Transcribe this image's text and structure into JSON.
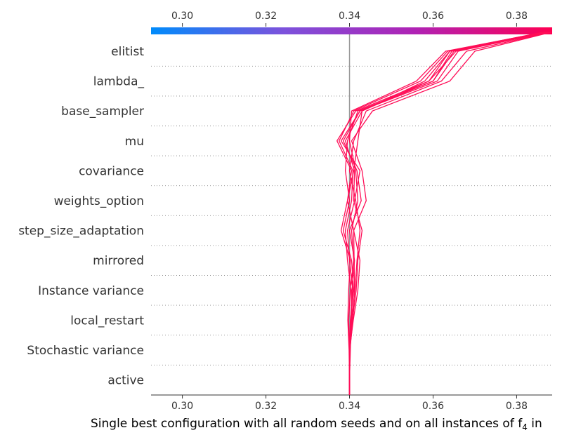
{
  "chart_data": {
    "type": "line",
    "subtype": "decision-plot",
    "xlabel": "Single best configuration with all random seeds and on all instances of f",
    "xlabel_subscript": "4",
    "xlabel_tail": " in",
    "xlim": [
      0.2925,
      0.3885
    ],
    "x_ticks": [
      0.3,
      0.32,
      0.34,
      0.36,
      0.38
    ],
    "x_tick_labels": [
      "0.30",
      "0.32",
      "0.34",
      "0.36",
      "0.38"
    ],
    "base_value": 0.34,
    "features": [
      "elitist",
      "lambda_",
      "base_sampler",
      "mu",
      "covariance",
      "weights_option",
      "step_size_adaptation",
      "mirrored",
      "Instance variance",
      "local_restart",
      "Stochastic variance",
      "active"
    ],
    "line_color": "#ff0d57",
    "base_line_color": "#999999",
    "colorbar_colors": [
      "#008bfb",
      "#7c52dc",
      "#b022b4",
      "#ff0052"
    ],
    "grid": true,
    "series": [
      {
        "values": [
          0.34,
          0.34,
          0.3401,
          0.3408,
          0.3412,
          0.3411,
          0.341,
          0.3395,
          0.341,
          0.342,
          0.343,
          0.359,
          0.364,
          0.387
        ]
      },
      {
        "values": [
          0.34,
          0.34,
          0.34,
          0.3402,
          0.341,
          0.3405,
          0.3385,
          0.34,
          0.339,
          0.3395,
          0.342,
          0.36,
          0.365,
          0.3875
        ]
      },
      {
        "values": [
          0.34,
          0.34,
          0.34,
          0.3405,
          0.3413,
          0.3418,
          0.3425,
          0.3415,
          0.34,
          0.341,
          0.344,
          0.362,
          0.368,
          0.388
        ]
      },
      {
        "values": [
          0.34,
          0.34,
          0.34,
          0.3398,
          0.3402,
          0.341,
          0.3405,
          0.342,
          0.3415,
          0.34,
          0.3405,
          0.356,
          0.363,
          0.3865
        ]
      },
      {
        "values": [
          0.34,
          0.34,
          0.3402,
          0.3404,
          0.3408,
          0.34,
          0.3395,
          0.3412,
          0.3425,
          0.338,
          0.3425,
          0.361,
          0.366,
          0.3872
        ]
      },
      {
        "values": [
          0.34,
          0.34,
          0.3401,
          0.3407,
          0.3416,
          0.342,
          0.343,
          0.341,
          0.3412,
          0.339,
          0.343,
          0.358,
          0.364,
          0.3868
        ]
      },
      {
        "values": [
          0.34,
          0.34,
          0.3399,
          0.3396,
          0.3398,
          0.3402,
          0.338,
          0.3395,
          0.3405,
          0.337,
          0.3415,
          0.359,
          0.3655,
          0.3878
        ]
      },
      {
        "values": [
          0.34,
          0.34,
          0.34,
          0.3409,
          0.342,
          0.3425,
          0.341,
          0.344,
          0.343,
          0.3405,
          0.3455,
          0.364,
          0.37,
          0.3882
        ]
      },
      {
        "values": [
          0.34,
          0.34,
          0.3401,
          0.3403,
          0.3406,
          0.3412,
          0.34,
          0.3428,
          0.3418,
          0.3385,
          0.3425,
          0.36,
          0.3645,
          0.387
        ]
      },
      {
        "values": [
          0.34,
          0.34,
          0.34,
          0.3406,
          0.3404,
          0.3395,
          0.339,
          0.3405,
          0.3408,
          0.3375,
          0.341,
          0.357,
          0.3635,
          0.3862
        ]
      }
    ]
  }
}
